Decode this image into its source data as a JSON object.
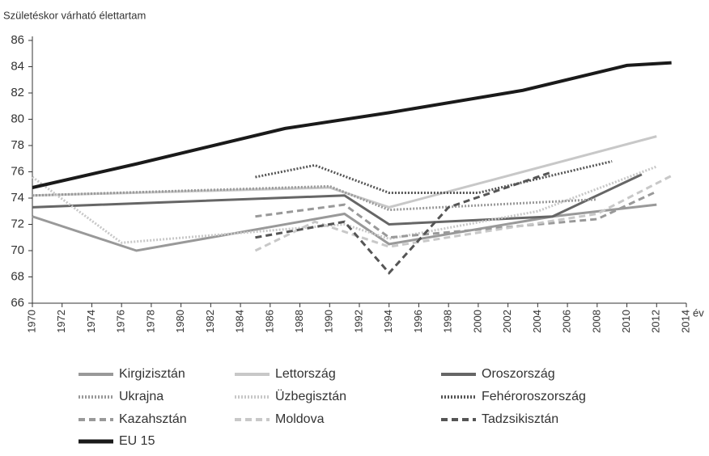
{
  "chart_data": {
    "type": "line",
    "y_label": "Születéskor várható élettartam",
    "x_label": "év",
    "xlim": [
      1970,
      2014
    ],
    "xticks": [
      1970,
      1972,
      1974,
      1976,
      1978,
      1980,
      1982,
      1984,
      1986,
      1988,
      1990,
      1992,
      1994,
      1996,
      1998,
      2000,
      2002,
      2004,
      2006,
      2008,
      2010,
      2012,
      2014
    ],
    "ylim": [
      66,
      86
    ],
    "yticks": [
      66,
      68,
      70,
      72,
      74,
      76,
      78,
      80,
      82,
      84,
      86
    ],
    "grid": false,
    "legend": "bottom",
    "series": [
      {
        "name": "Kirgizisztán",
        "color": "#999999",
        "style": "solid",
        "x": [
          1970,
          1977,
          1991,
          1994,
          2005,
          2012
        ],
        "values": [
          72.6,
          70.0,
          72.8,
          70.5,
          72.6,
          73.5
        ]
      },
      {
        "name": "Lettország",
        "color": "#c8c8c8",
        "style": "solid",
        "x": [
          1970,
          1990,
          1994,
          2012
        ],
        "values": [
          74.2,
          74.8,
          73.3,
          78.7
        ]
      },
      {
        "name": "Oroszország",
        "color": "#666666",
        "style": "solid",
        "x": [
          1970,
          1991,
          1994,
          2005,
          2011
        ],
        "values": [
          73.3,
          74.2,
          72.0,
          72.6,
          75.8
        ]
      },
      {
        "name": "Ukrajna",
        "color": "#999999",
        "style": "dotted",
        "x": [
          1970,
          1990,
          1994,
          2008
        ],
        "values": [
          74.2,
          74.9,
          73.1,
          73.9
        ]
      },
      {
        "name": "Üzbegisztán",
        "color": "#c8c8c8",
        "style": "dotted",
        "x": [
          1970,
          1976,
          1991,
          1994,
          2004,
          2012
        ],
        "values": [
          75.6,
          70.6,
          72.0,
          70.9,
          73.0,
          76.4
        ]
      },
      {
        "name": "Fehéroroszország",
        "color": "#555555",
        "style": "dotted",
        "x": [
          1985,
          1989,
          1994,
          2000,
          2009
        ],
        "values": [
          75.6,
          76.5,
          74.4,
          74.4,
          76.8
        ]
      },
      {
        "name": "Kazahsztán",
        "color": "#999999",
        "style": "dashed",
        "x": [
          1985,
          1991,
          1994,
          2008,
          2012
        ],
        "values": [
          72.6,
          73.5,
          71.0,
          72.4,
          74.5
        ]
      },
      {
        "name": "Moldova",
        "color": "#c8c8c8",
        "style": "dashed",
        "x": [
          1985,
          1989,
          1994,
          2008,
          2013
        ],
        "values": [
          70.0,
          72.2,
          70.3,
          72.8,
          75.7
        ]
      },
      {
        "name": "Tadzsikisztán",
        "color": "#555555",
        "style": "dashed",
        "x": [
          1985,
          1991,
          1994,
          1998,
          2005
        ],
        "values": [
          71.0,
          72.2,
          68.3,
          73.3,
          76.0
        ]
      },
      {
        "name": "EU 15",
        "color": "#1a1a1a",
        "style": "thick",
        "x": [
          1970,
          1977,
          1987,
          1994,
          2003,
          2010,
          2013
        ],
        "values": [
          74.8,
          76.6,
          79.3,
          80.5,
          82.2,
          84.1,
          84.3
        ]
      }
    ]
  }
}
